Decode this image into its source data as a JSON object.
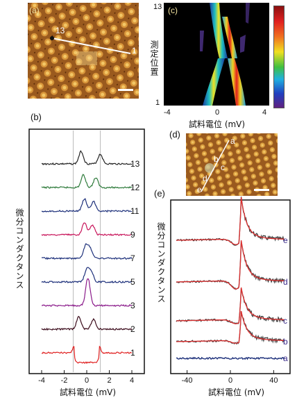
{
  "panels": {
    "a": {
      "label": "(a)",
      "point_start": "13",
      "point_end": "1"
    },
    "b": {
      "label": "(b)"
    },
    "c": {
      "label": "(c)",
      "ylabel": "測定位置",
      "xlabel": "試料電位 (mV)",
      "yticks": [
        "13",
        "1"
      ],
      "xticks": [
        "-4",
        "0",
        "4"
      ]
    },
    "d": {
      "label": "(d)",
      "points": [
        "a",
        "b",
        "c",
        "d",
        "e"
      ]
    },
    "e": {
      "label": "(e)"
    }
  },
  "chart_data": [
    {
      "type": "line",
      "panel": "b",
      "xlabel": "試料電位 (mV)",
      "ylabel": "微分コンダクタンス",
      "xlim": [
        -4,
        4
      ],
      "xticks": [
        "-4",
        "-2",
        "0",
        "2",
        "4"
      ],
      "series": [
        {
          "name": "13",
          "color": "#222222",
          "peaks": [
            -0.5,
            1.2
          ]
        },
        {
          "name": "12",
          "color": "#2d7a3a",
          "peaks": [
            -0.3,
            0.8
          ]
        },
        {
          "name": "11",
          "color": "#1c2f7a",
          "peaks": [
            -0.2,
            0.6
          ]
        },
        {
          "name": "9",
          "color": "#c8145a",
          "peaks": [
            -0.2,
            0.5
          ]
        },
        {
          "name": "7",
          "color": "#1c2f7a",
          "peaks": [
            -0.1,
            0.3
          ]
        },
        {
          "name": "5",
          "color": "#1c2f7a",
          "peaks": [
            0.0,
            0.4
          ]
        },
        {
          "name": "3",
          "color": "#8a1a8a",
          "peaks": [
            0.1
          ]
        },
        {
          "name": "2",
          "color": "#3a0a1a",
          "peaks": [
            -0.7,
            0.6
          ]
        },
        {
          "name": "1",
          "color": "#e02020",
          "peaks": [
            -1.2,
            1.2
          ]
        }
      ]
    },
    {
      "type": "line",
      "panel": "e",
      "xlabel": "試料電位 (mV)",
      "ylabel": "微分コンダクタンス",
      "xlim": [
        -50,
        50
      ],
      "xticks": [
        "-40",
        "0",
        "40"
      ],
      "series": [
        {
          "name": "e",
          "color": "#444444"
        },
        {
          "name": "d",
          "color": "#444444"
        },
        {
          "name": "c",
          "color": "#444444"
        },
        {
          "name": "b",
          "color": "#444444"
        },
        {
          "name": "a",
          "color": "#1c2f7a"
        }
      ],
      "fit_color": "#e03030"
    }
  ]
}
